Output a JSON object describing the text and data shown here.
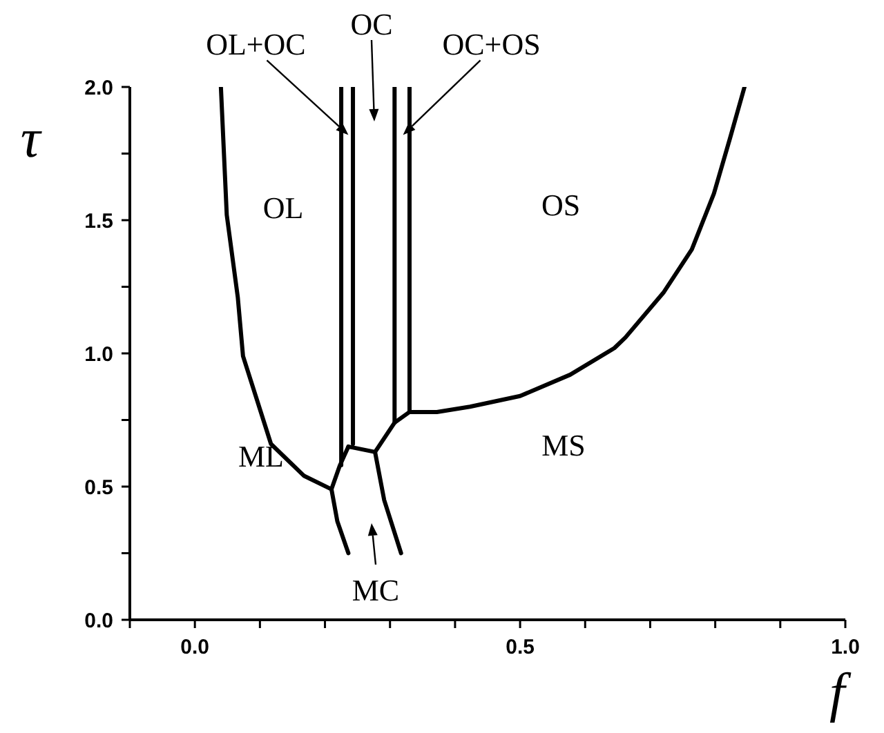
{
  "chart_data": {
    "type": "line",
    "xlabel": "f",
    "ylabel": "τ",
    "xlim": [
      -0.1,
      1.0
    ],
    "ylim": [
      0,
      2.0
    ],
    "xticks": [
      {
        "value": -0.1,
        "label": null
      },
      {
        "value": 0,
        "label": "0.0"
      },
      {
        "value": 0.1,
        "label": null
      },
      {
        "value": 0.2,
        "label": null
      },
      {
        "value": 0.3,
        "label": null
      },
      {
        "value": 0.4,
        "label": null
      },
      {
        "value": 0.5,
        "label": "0.5"
      },
      {
        "value": 0.6,
        "label": null
      },
      {
        "value": 0.7,
        "label": null
      },
      {
        "value": 0.8,
        "label": null
      },
      {
        "value": 0.9,
        "label": null
      },
      {
        "value": 1.0,
        "label": "1.0"
      }
    ],
    "yticks": [
      {
        "value": 0,
        "label": "0.0"
      },
      {
        "value": 0.25,
        "label": null
      },
      {
        "value": 0.5,
        "label": "0.5"
      },
      {
        "value": 0.75,
        "label": null
      },
      {
        "value": 1.0,
        "label": "1.0"
      },
      {
        "value": 1.25,
        "label": null
      },
      {
        "value": 1.5,
        "label": "1.5"
      },
      {
        "value": 1.75,
        "label": null
      },
      {
        "value": 2.0,
        "label": "2.0"
      }
    ],
    "series": [
      {
        "color": "#000000",
        "x": [
          0.04,
          0.049,
          0.066,
          0.074,
          0.117,
          0.168,
          0.21
        ],
        "values": [
          2.0,
          1.52,
          1.21,
          0.99,
          0.66,
          0.54,
          0.49
        ]
      },
      {
        "color": "#000000",
        "x": [
          0.21,
          0.219,
          0.236
        ],
        "values": [
          0.49,
          0.37,
          0.25
        ]
      },
      {
        "color": "#000000",
        "x": [
          0.21,
          0.223,
          0.236
        ],
        "values": [
          0.49,
          0.58,
          0.65
        ]
      },
      {
        "color": "#000000",
        "x": [
          0.225,
          0.225
        ],
        "values": [
          2.0,
          0.58
        ]
      },
      {
        "color": "#000000",
        "x": [
          0.243,
          0.243
        ],
        "values": [
          2.0,
          0.66
        ]
      },
      {
        "color": "#000000",
        "x": [
          0.307,
          0.307
        ],
        "values": [
          2.0,
          0.74
        ]
      },
      {
        "color": "#000000",
        "x": [
          0.33,
          0.33
        ],
        "values": [
          2.0,
          0.78
        ]
      },
      {
        "color": "#000000",
        "x": [
          0.236,
          0.277
        ],
        "values": [
          0.65,
          0.63
        ]
      },
      {
        "color": "#000000",
        "x": [
          0.277,
          0.291,
          0.317
        ],
        "values": [
          0.63,
          0.45,
          0.25
        ]
      },
      {
        "color": "#000000",
        "x": [
          0.277,
          0.307,
          0.33
        ],
        "values": [
          0.63,
          0.74,
          0.78
        ]
      },
      {
        "color": "#000000",
        "x": [
          0.33,
          0.372,
          0.423,
          0.5,
          0.577,
          0.645,
          0.662,
          0.721,
          0.764,
          0.798,
          0.823,
          0.845
        ],
        "values": [
          0.78,
          0.78,
          0.8,
          0.84,
          0.92,
          1.02,
          1.06,
          1.23,
          1.39,
          1.6,
          1.81,
          2.0
        ]
      }
    ],
    "annotations": [
      "OL",
      "OS",
      "ML",
      "MS",
      {
        "text": "OL+OC",
        "x": 0.236,
        "y": 1.82
      },
      "OC",
      {
        "text": "OC+OS",
        "x": 0.32,
        "y": 1.82
      },
      "MC"
    ]
  }
}
